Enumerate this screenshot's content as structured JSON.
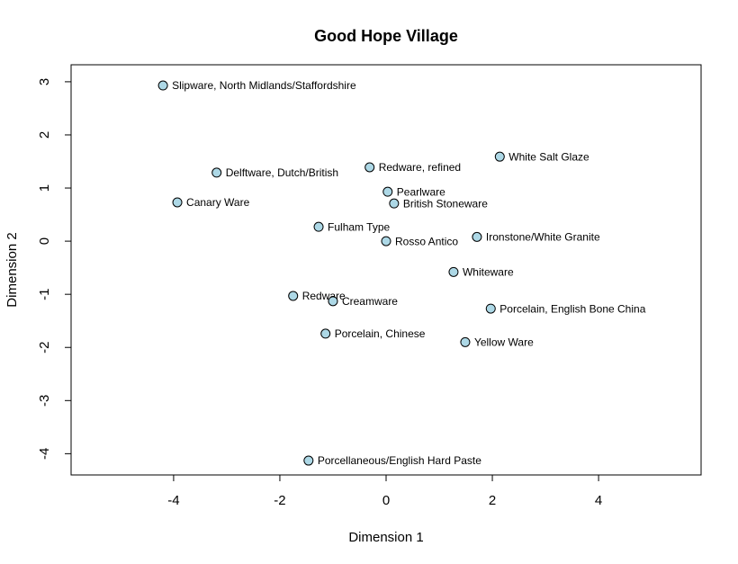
{
  "chart_data": {
    "type": "scatter",
    "title": "Good Hope Village",
    "x_label": "Dimension 1",
    "y_label": "Dimension 2",
    "labels": [
      "Slipware, North Midlands/Staffordshire",
      "Delftware, Dutch/British",
      "Canary Ware",
      "Redware, refined",
      "White Salt Glaze",
      "Pearlware",
      "British Stoneware",
      "Fulham Type",
      "Rosso Antico",
      "Ironstone/White Granite",
      "Whiteware",
      "Redware",
      "Creamware",
      "Porcelain, English Bone China",
      "Porcelain, Chinese",
      "Yellow Ware",
      "Porcellaneous/English Hard Paste"
    ],
    "x": [
      -4.2,
      -3.19,
      -3.93,
      -0.31,
      2.14,
      0.03,
      0.15,
      -1.27,
      0.0,
      1.71,
      1.27,
      -1.75,
      -1.0,
      1.97,
      -1.14,
      1.49,
      -1.46
    ],
    "values": [
      2.93,
      1.29,
      0.73,
      1.39,
      1.59,
      0.93,
      0.71,
      0.27,
      0.0,
      0.08,
      -0.58,
      -1.03,
      -1.13,
      -1.27,
      -1.74,
      -1.9,
      -4.13
    ],
    "color": "#add8e6",
    "xlim": [
      -5.93,
      5.93
    ],
    "xticks": [
      -4,
      -2,
      0,
      2,
      4
    ],
    "ylim": [
      -4.4,
      3.32
    ],
    "yticks": [
      -4,
      -3,
      -2,
      -1,
      0,
      1,
      2,
      3
    ]
  }
}
